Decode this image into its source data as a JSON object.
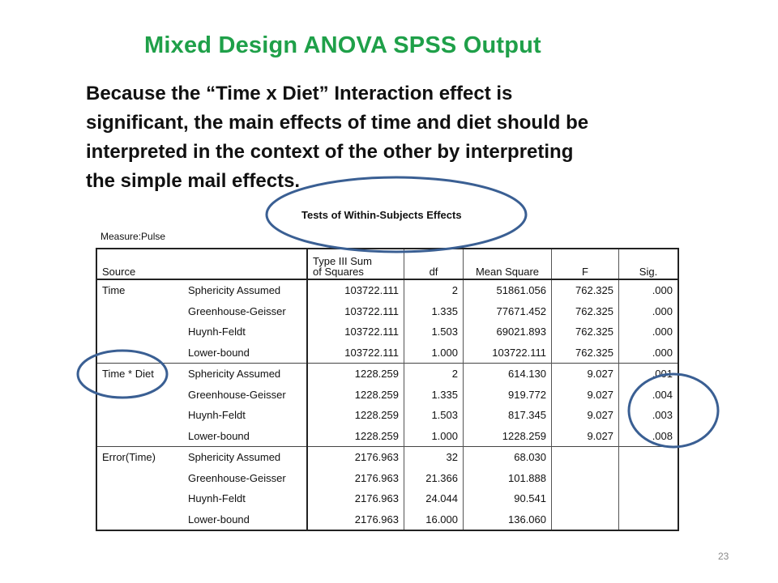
{
  "slide": {
    "title": "Mixed Design ANOVA SPSS Output",
    "body_lines": [
      "Because the “Time x Diet” Interaction effect is",
      "significant, the main effects of time and diet should be",
      "interpreted in the context of the other by interpreting",
      "the simple mail effects."
    ],
    "page_number": "23"
  },
  "table": {
    "title": "Tests of Within-Subjects Effects",
    "measure": "Measure:Pulse",
    "headers": {
      "source": "Source",
      "ss_line1": "Type III Sum",
      "ss_line2": "of Squares",
      "df": "df",
      "ms": "Mean Square",
      "f": "F",
      "sig": "Sig."
    },
    "rows": [
      [
        "Time",
        "Sphericity Assumed",
        "103722.111",
        "2",
        "51861.056",
        "762.325",
        ".000"
      ],
      [
        "",
        "Greenhouse-Geisser",
        "103722.111",
        "1.335",
        "77671.452",
        "762.325",
        ".000"
      ],
      [
        "",
        "Huynh-Feldt",
        "103722.111",
        "1.503",
        "69021.893",
        "762.325",
        ".000"
      ],
      [
        "",
        "Lower-bound",
        "103722.111",
        "1.000",
        "103722.111",
        "762.325",
        ".000"
      ],
      [
        "Time * Diet",
        "Sphericity Assumed",
        "1228.259",
        "2",
        "614.130",
        "9.027",
        ".001"
      ],
      [
        "",
        "Greenhouse-Geisser",
        "1228.259",
        "1.335",
        "919.772",
        "9.027",
        ".004"
      ],
      [
        "",
        "Huynh-Feldt",
        "1228.259",
        "1.503",
        "817.345",
        "9.027",
        ".003"
      ],
      [
        "",
        "Lower-bound",
        "1228.259",
        "1.000",
        "1228.259",
        "9.027",
        ".008"
      ],
      [
        "Error(Time)",
        "Sphericity Assumed",
        "2176.963",
        "32",
        "68.030",
        "",
        ""
      ],
      [
        "",
        "Greenhouse-Geisser",
        "2176.963",
        "21.366",
        "101.888",
        "",
        ""
      ],
      [
        "",
        "Huynh-Feldt",
        "2176.963",
        "24.044",
        "90.541",
        "",
        ""
      ],
      [
        "",
        "Lower-bound",
        "2176.963",
        "16.000",
        "136.060",
        "",
        ""
      ]
    ]
  },
  "colors": {
    "title": "#1fa049",
    "annotation_circle": "#3a5f93"
  }
}
